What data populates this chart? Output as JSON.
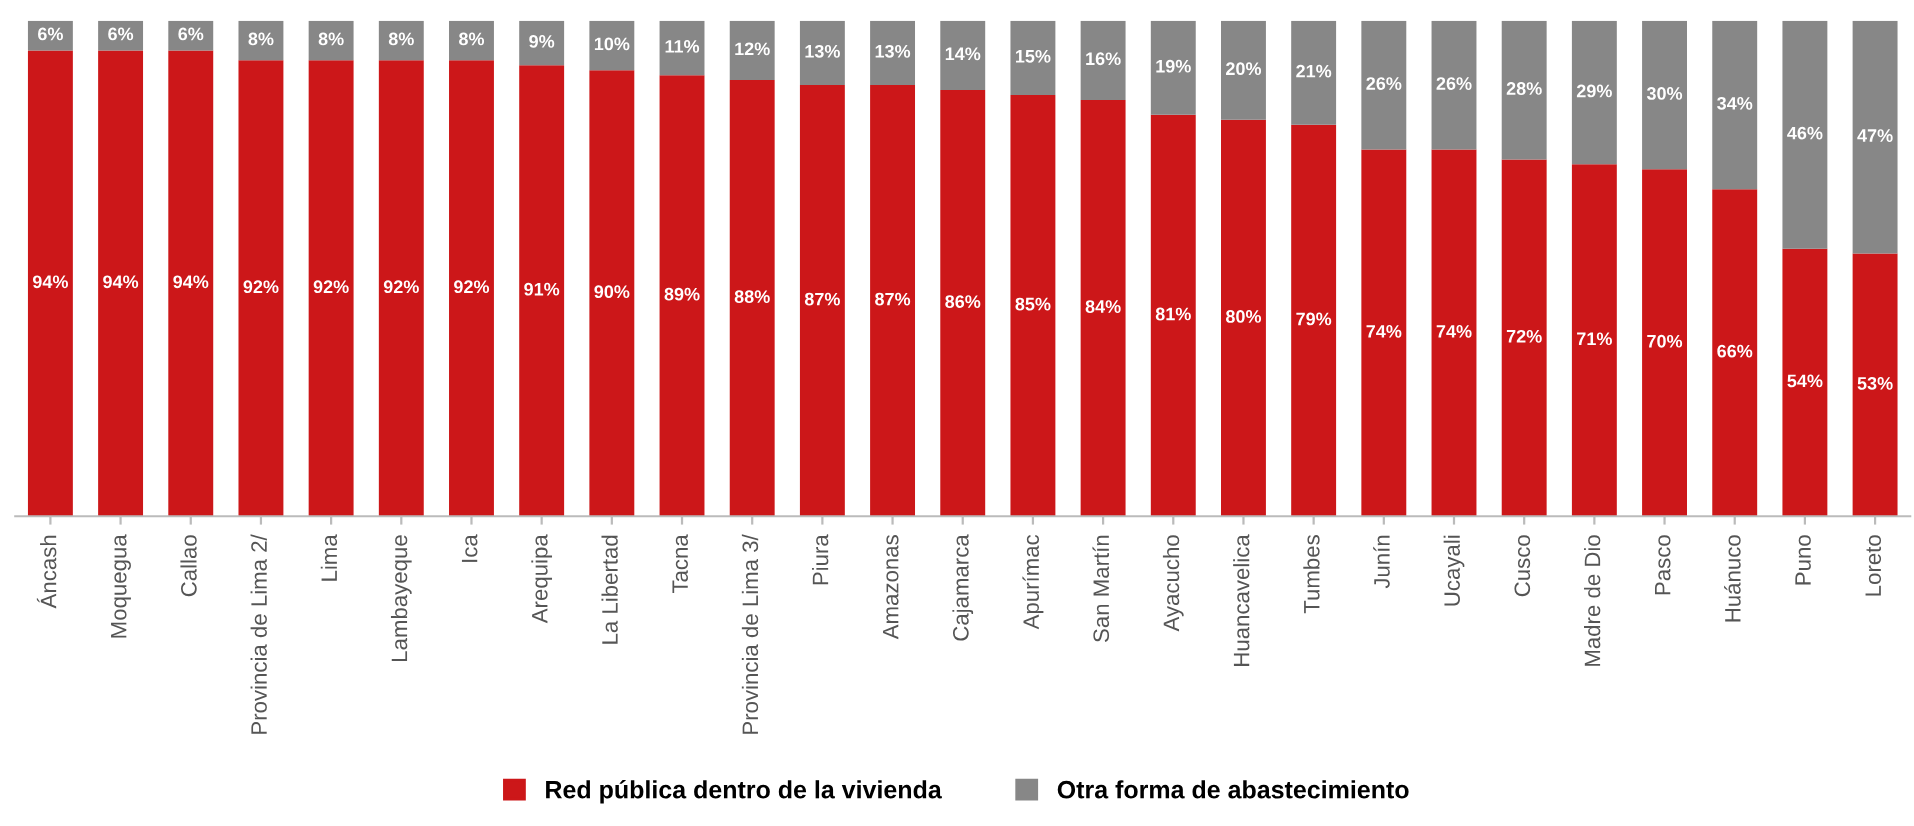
{
  "chart_data": {
    "type": "bar",
    "stacked": true,
    "legend": "bottom",
    "grid": false,
    "categories": [
      "Áncash",
      "Moquegua",
      "Callao",
      "Provincia de Lima 2/",
      "Lima",
      "Lambayeque",
      "Ica",
      "Arequipa",
      "La Libertad",
      "Tacna",
      "Provincia de Lima 3/",
      "Piura",
      "Amazonas",
      "Cajamarca",
      "Apurímac",
      "San Martín",
      "Ayacucho",
      "Huancavelica",
      "Tumbes",
      "Junín",
      "Ucayali",
      "Cusco",
      "Madre de Dio",
      "Pasco",
      "Huánuco",
      "Puno",
      "Loreto"
    ],
    "series": [
      {
        "name": "Red pública dentro de la vivienda",
        "color": "#cc1719",
        "values": [
          94,
          94,
          94,
          92,
          92,
          92,
          92,
          91,
          90,
          89,
          88,
          87,
          87,
          86,
          85,
          84,
          81,
          80,
          79,
          74,
          74,
          72,
          71,
          70,
          66,
          54,
          53
        ],
        "value_labels": [
          "94%",
          "94%",
          "94%",
          "92%",
          "92%",
          "92%",
          "92%",
          "91%",
          "90%",
          "89%",
          "88%",
          "87%",
          "87%",
          "86%",
          "85%",
          "84%",
          "81%",
          "80%",
          "79%",
          "74%",
          "74%",
          "72%",
          "71%",
          "70%",
          "66%",
          "54%",
          "53%"
        ]
      },
      {
        "name": "Otra forma de abastecimiento",
        "color": "#878787",
        "values": [
          6,
          6,
          6,
          8,
          8,
          8,
          8,
          9,
          10,
          11,
          12,
          13,
          13,
          14,
          15,
          16,
          19,
          20,
          21,
          26,
          26,
          28,
          29,
          30,
          34,
          46,
          47
        ],
        "value_labels": [
          "6%",
          "6%",
          "6%",
          "8%",
          "8%",
          "8%",
          "8%",
          "9%",
          "10%",
          "11%",
          "12%",
          "13%",
          "13%",
          "14%",
          "15%",
          "16%",
          "19%",
          "20%",
          "21%",
          "26%",
          "26%",
          "28%",
          "29%",
          "30%",
          "34%",
          "46%",
          "47%"
        ]
      }
    ]
  }
}
